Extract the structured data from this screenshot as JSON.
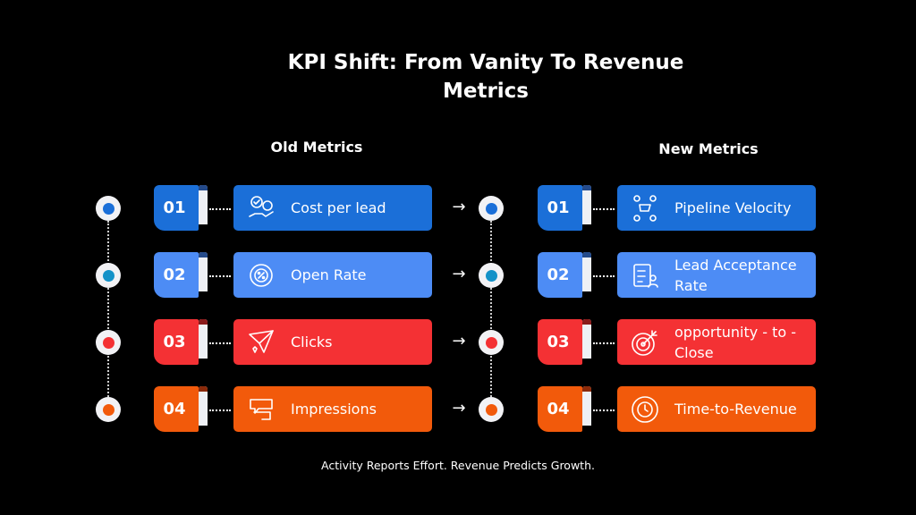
{
  "title": "KPI Shift: From Vanity To Revenue Metrics",
  "old_heading": "Old Metrics",
  "new_heading": "New Metrics",
  "arrow": "→",
  "footer": "Activity Reports Effort. Revenue Predicts Growth.",
  "colors": {
    "blue": "#1b6fd8",
    "light_blue": "#4d8cf5",
    "red": "#f43134",
    "orange": "#f25a0b"
  },
  "old": [
    {
      "num": "01",
      "label": "Cost per lead",
      "icon": "money-bag-hand-icon"
    },
    {
      "num": "02",
      "label": "Open Rate",
      "icon": "percent-cycle-icon"
    },
    {
      "num": "03",
      "label": "Clicks",
      "icon": "paper-plane-icon"
    },
    {
      "num": "04",
      "label": "Impressions",
      "icon": "chat-bubbles-icon"
    }
  ],
  "new": [
    {
      "num": "01",
      "label": "Pipeline Velocity",
      "icon": "cart-cycle-icon"
    },
    {
      "num": "02",
      "label": "Lead Acceptance Rate",
      "icon": "checklist-user-icon"
    },
    {
      "num": "03",
      "label": "opportunity - to - Close",
      "icon": "target-arrow-icon"
    },
    {
      "num": "04",
      "label": "Time-to-Revenue",
      "icon": "gear-clock-icon"
    }
  ]
}
